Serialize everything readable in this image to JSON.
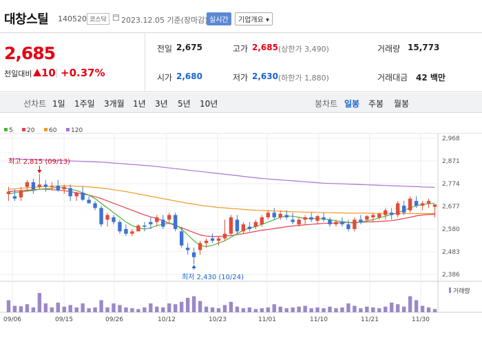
{
  "header": {
    "stock_name": "대창스틸",
    "stock_code": "140520",
    "market": "코스닥",
    "base_date": "2023.12.05  기준(장마감)",
    "realtime_label": "실시간",
    "company_label": "기업개요 ▾"
  },
  "quote": {
    "price": "2,685",
    "change_label": "전일대비",
    "change_amount": "10",
    "change_percent": "+0.37%",
    "prev_close_label": "전일",
    "prev_close": "2,675",
    "high_label": "고가",
    "high": "2,685",
    "upper_limit": "(상한가 3,490)",
    "volume_label": "거래량",
    "volume": "15,773",
    "open_label": "시가",
    "open": "2,680",
    "low_label": "저가",
    "low": "2,630",
    "lower_limit": "(하한가 1,880)",
    "amount_label": "거래대금",
    "amount": "42 백만"
  },
  "tabs": {
    "line_title": "선차트",
    "periods": [
      "1일",
      "1주일",
      "3개월",
      "1년",
      "3년",
      "5년",
      "10년"
    ],
    "candle_title": "봉차트",
    "candles": [
      "일봉",
      "주봉",
      "월봉"
    ]
  },
  "colors": {
    "up": "#e24b3b",
    "down": "#3d73d4",
    "ma5": "#4bb33b",
    "ma20": "#e0404a",
    "ma60": "#f09a26",
    "ma120": "#a973d2",
    "volume": "#9b88c8"
  },
  "chart_data": {
    "type": "candlestick",
    "legend": [
      "5",
      "20",
      "60",
      "120"
    ],
    "y_ticks": [
      "2,968",
      "2,871",
      "2,774",
      "2,677",
      "2,580",
      "2,483",
      "2,386"
    ],
    "ylim": [
      2386,
      2968
    ],
    "x_ticks": [
      "09/06",
      "09/15",
      "09/26",
      "10/12",
      "10/23",
      "11/01",
      "11/10",
      "11/21",
      "11/30"
    ],
    "volume_label": "거래량",
    "annotations": {
      "high": "최고 2,815 (09/13)",
      "low": "최저 2,430 (10/24)"
    },
    "candles": [
      [
        2730,
        2760,
        2700,
        2740
      ],
      [
        2720,
        2750,
        2700,
        2710
      ],
      [
        2715,
        2760,
        2700,
        2745
      ],
      [
        2760,
        2790,
        2740,
        2780
      ],
      [
        2780,
        2795,
        2730,
        2750
      ],
      [
        2760,
        2815,
        2750,
        2770
      ],
      [
        2770,
        2790,
        2740,
        2760
      ],
      [
        2760,
        2780,
        2745,
        2765
      ],
      [
        2765,
        2790,
        2740,
        2745
      ],
      [
        2750,
        2770,
        2730,
        2760
      ],
      [
        2755,
        2770,
        2700,
        2720
      ],
      [
        2720,
        2740,
        2700,
        2735
      ],
      [
        2735,
        2760,
        2700,
        2705
      ],
      [
        2705,
        2720,
        2690,
        2690
      ],
      [
        2690,
        2700,
        2660,
        2670
      ],
      [
        2670,
        2680,
        2590,
        2600
      ],
      [
        2620,
        2650,
        2590,
        2640
      ],
      [
        2630,
        2640,
        2600,
        2610
      ],
      [
        2610,
        2620,
        2560,
        2570
      ],
      [
        2580,
        2600,
        2550,
        2560
      ],
      [
        2560,
        2580,
        2550,
        2570
      ],
      [
        2570,
        2600,
        2570,
        2595
      ],
      [
        2595,
        2610,
        2570,
        2590
      ],
      [
        2610,
        2630,
        2580,
        2600
      ],
      [
        2610,
        2640,
        2590,
        2630
      ],
      [
        2620,
        2640,
        2580,
        2590
      ],
      [
        2620,
        2650,
        2600,
        2640
      ],
      [
        2640,
        2650,
        2570,
        2580
      ],
      [
        2570,
        2590,
        2500,
        2510
      ],
      [
        2500,
        2520,
        2470,
        2490
      ],
      [
        2480,
        2500,
        2430,
        2460
      ],
      [
        2490,
        2530,
        2470,
        2520
      ],
      [
        2520,
        2540,
        2500,
        2530
      ],
      [
        2540,
        2560,
        2520,
        2530
      ],
      [
        2530,
        2550,
        2510,
        2540
      ],
      [
        2540,
        2620,
        2530,
        2560
      ],
      [
        2560,
        2640,
        2550,
        2630
      ],
      [
        2620,
        2640,
        2560,
        2570
      ],
      [
        2570,
        2610,
        2560,
        2600
      ],
      [
        2590,
        2610,
        2570,
        2580
      ],
      [
        2590,
        2620,
        2580,
        2610
      ],
      [
        2600,
        2640,
        2590,
        2630
      ],
      [
        2630,
        2660,
        2620,
        2650
      ],
      [
        2650,
        2670,
        2620,
        2630
      ],
      [
        2630,
        2660,
        2620,
        2645
      ],
      [
        2640,
        2660,
        2620,
        2630
      ],
      [
        2620,
        2650,
        2600,
        2610
      ],
      [
        2600,
        2630,
        2590,
        2620
      ],
      [
        2620,
        2640,
        2600,
        2630
      ],
      [
        2630,
        2650,
        2610,
        2620
      ],
      [
        2615,
        2640,
        2600,
        2635
      ],
      [
        2630,
        2650,
        2610,
        2620
      ],
      [
        2620,
        2630,
        2590,
        2600
      ],
      [
        2600,
        2620,
        2590,
        2610
      ],
      [
        2610,
        2630,
        2590,
        2600
      ],
      [
        2600,
        2620,
        2570,
        2580
      ],
      [
        2580,
        2630,
        2570,
        2620
      ],
      [
        2620,
        2640,
        2600,
        2610
      ],
      [
        2620,
        2640,
        2610,
        2635
      ],
      [
        2630,
        2650,
        2610,
        2640
      ],
      [
        2630,
        2650,
        2620,
        2645
      ],
      [
        2640,
        2670,
        2620,
        2660
      ],
      [
        2650,
        2670,
        2620,
        2640
      ],
      [
        2640,
        2700,
        2630,
        2690
      ],
      [
        2680,
        2700,
        2640,
        2650
      ],
      [
        2660,
        2720,
        2650,
        2710
      ],
      [
        2700,
        2720,
        2670,
        2680
      ],
      [
        2680,
        2700,
        2660,
        2690
      ],
      [
        2690,
        2710,
        2670,
        2700
      ],
      [
        2675,
        2685,
        2630,
        2685
      ]
    ],
    "volume": [
      30,
      16,
      15,
      20,
      12,
      48,
      22,
      12,
      24,
      14,
      18,
      12,
      22,
      10,
      12,
      30,
      12,
      22,
      18,
      12,
      10,
      8,
      12,
      22,
      14,
      12,
      22,
      20,
      26,
      36,
      40,
      28,
      14,
      12,
      10,
      18,
      26,
      14,
      10,
      12,
      8,
      10,
      12,
      20,
      14,
      10,
      12,
      14,
      16,
      10,
      12,
      10,
      14,
      10,
      12,
      22,
      16,
      10,
      14,
      12,
      10,
      14,
      24,
      20,
      14,
      40,
      30,
      16,
      12,
      8
    ],
    "ma5": [
      2730,
      2735,
      2738,
      2742,
      2745,
      2750,
      2752,
      2755,
      2758,
      2755,
      2750,
      2745,
      2735,
      2725,
      2710,
      2690,
      2670,
      2650,
      2630,
      2610,
      2595,
      2585,
      2580,
      2585,
      2595,
      2600,
      2605,
      2600,
      2580,
      2555,
      2530,
      2510,
      2505,
      2510,
      2520,
      2530,
      2545,
      2560,
      2575,
      2585,
      2590,
      2600,
      2610,
      2620,
      2630,
      2635,
      2635,
      2630,
      2625,
      2625,
      2625,
      2622,
      2620,
      2615,
      2612,
      2608,
      2605,
      2610,
      2615,
      2620,
      2628,
      2635,
      2642,
      2650,
      2660,
      2670,
      2680,
      2685,
      2688,
      2690
    ],
    "ma20": [
      2740,
      2742,
      2744,
      2746,
      2748,
      2750,
      2750,
      2748,
      2746,
      2744,
      2740,
      2735,
      2730,
      2725,
      2718,
      2710,
      2700,
      2690,
      2680,
      2670,
      2660,
      2650,
      2640,
      2632,
      2625,
      2615,
      2605,
      2595,
      2585,
      2575,
      2565,
      2555,
      2550,
      2548,
      2548,
      2550,
      2552,
      2556,
      2560,
      2565,
      2570,
      2575,
      2578,
      2582,
      2586,
      2590,
      2593,
      2596,
      2598,
      2600,
      2602,
      2604,
      2605,
      2606,
      2607,
      2608,
      2608,
      2609,
      2610,
      2611,
      2612,
      2614,
      2616,
      2620,
      2625,
      2630,
      2636,
      2640,
      2642,
      2643
    ],
    "ma60": [
      2750,
      2752,
      2754,
      2756,
      2758,
      2760,
      2762,
      2763,
      2764,
      2764,
      2764,
      2763,
      2762,
      2760,
      2758,
      2755,
      2752,
      2748,
      2744,
      2740,
      2735,
      2730,
      2725,
      2720,
      2715,
      2710,
      2705,
      2700,
      2695,
      2690,
      2686,
      2682,
      2678,
      2675,
      2672,
      2670,
      2668,
      2666,
      2664,
      2662,
      2660,
      2659,
      2658,
      2657,
      2656,
      2655,
      2654,
      2653,
      2652,
      2652,
      2651,
      2650,
      2650,
      2649,
      2649,
      2648,
      2648,
      2648,
      2648,
      2647,
      2647,
      2647,
      2646,
      2646,
      2646,
      2646,
      2646,
      2646,
      2646,
      2646
    ],
    "ma120": [
      2880,
      2879,
      2878,
      2878,
      2877,
      2876,
      2875,
      2874,
      2873,
      2872,
      2871,
      2870,
      2869,
      2868,
      2867,
      2866,
      2864,
      2862,
      2860,
      2858,
      2856,
      2854,
      2852,
      2850,
      2847,
      2844,
      2841,
      2838,
      2835,
      2832,
      2829,
      2826,
      2823,
      2820,
      2817,
      2814,
      2811,
      2808,
      2805,
      2802,
      2799,
      2796,
      2794,
      2792,
      2790,
      2788,
      2786,
      2784,
      2782,
      2780,
      2778,
      2776,
      2775,
      2774,
      2773,
      2772,
      2771,
      2770,
      2769,
      2768,
      2767,
      2766,
      2765,
      2764,
      2763,
      2762,
      2761,
      2760,
      2759,
      2758
    ]
  }
}
